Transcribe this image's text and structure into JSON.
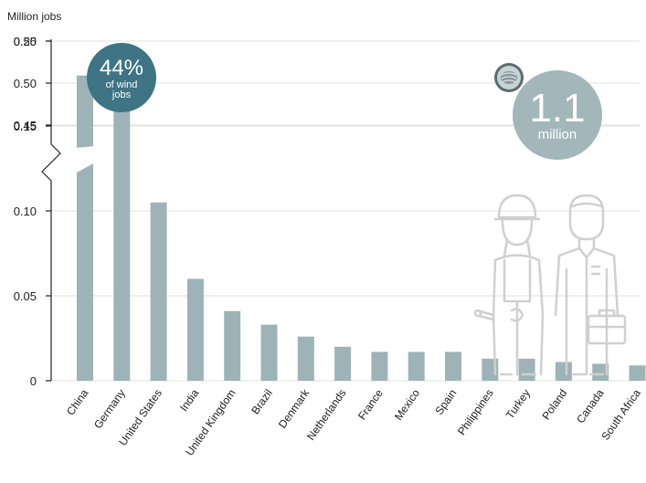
{
  "chart_data": {
    "type": "bar",
    "ylabel": "Million jobs",
    "categories": [
      "China",
      "Germany",
      "United States",
      "India",
      "United Kingdom",
      "Brazil",
      "Denmark",
      "Netherlands",
      "France",
      "Mexico",
      "Spain",
      "Philippines",
      "Turkey",
      "Poland",
      "Canada",
      "South Africa"
    ],
    "values": [
      0.509,
      0.16,
      0.105,
      0.06,
      0.041,
      0.033,
      0.026,
      0.02,
      0.017,
      0.017,
      0.017,
      0.013,
      0.013,
      0.011,
      0.01,
      0.009
    ],
    "lower_ticks": [
      "0",
      "0.05",
      "0.10",
      "0.15",
      "0.20"
    ],
    "upper_ticks": [
      "0.45",
      "0.50",
      "0.55"
    ],
    "axis_break": [
      0.22,
      0.435
    ],
    "ylim": [
      0,
      0.55
    ],
    "grid": true,
    "bar_color": "#9db3b8"
  },
  "badge": {
    "percent": "44%",
    "line1": "of wind",
    "line2": "jobs",
    "color": "#3e7483"
  },
  "total": {
    "value": "1.1",
    "unit": "million",
    "color": "#a3b6ba"
  },
  "icons": [
    "wind-turbine-icon",
    "female-worker-icon",
    "male-worker-icon"
  ]
}
